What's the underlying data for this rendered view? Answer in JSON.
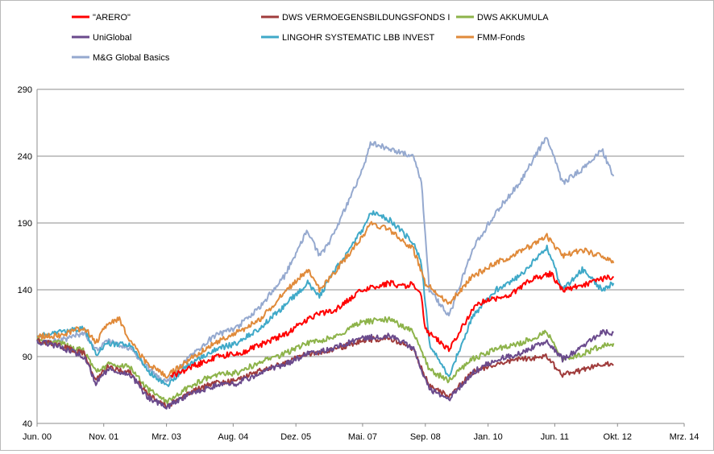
{
  "chart_data": {
    "type": "line",
    "title": "",
    "xlabel": "",
    "ylabel": "",
    "ylim": [
      40,
      290
    ],
    "yticks": [
      40,
      90,
      140,
      190,
      240,
      290
    ],
    "grid": "horizontal",
    "legend_position": "top",
    "xlim": [
      "2000-06",
      "2014-03"
    ],
    "x_ticks": [
      {
        "label": "Jun. 00",
        "date": "2000-06"
      },
      {
        "label": "Nov. 01",
        "date": "2001-11"
      },
      {
        "label": "Mrz. 03",
        "date": "2003-03"
      },
      {
        "label": "Aug. 04",
        "date": "2004-08"
      },
      {
        "label": "Dez. 05",
        "date": "2005-12"
      },
      {
        "label": "Mai. 07",
        "date": "2007-05"
      },
      {
        "label": "Sep. 08",
        "date": "2008-09"
      },
      {
        "label": "Jan. 10",
        "date": "2010-01"
      },
      {
        "label": "Jun. 11",
        "date": "2011-06"
      },
      {
        "label": "Okt. 12",
        "date": "2012-10"
      },
      {
        "label": "Mrz. 14",
        "date": "2014-03"
      }
    ],
    "series": [
      {
        "name": "\"ARERO\"",
        "color": "#ff0000",
        "points": [
          [
            "2003-04",
            75
          ],
          [
            "2003-10",
            83
          ],
          [
            "2004-04",
            90
          ],
          [
            "2004-10",
            93
          ],
          [
            "2005-04",
            100
          ],
          [
            "2005-10",
            108
          ],
          [
            "2006-04",
            120
          ],
          [
            "2006-10",
            125
          ],
          [
            "2007-04",
            138
          ],
          [
            "2007-07",
            142
          ],
          [
            "2007-12",
            145
          ],
          [
            "2008-04",
            142
          ],
          [
            "2008-06",
            145
          ],
          [
            "2008-08",
            135
          ],
          [
            "2008-09",
            110
          ],
          [
            "2008-11",
            105
          ],
          [
            "2009-03",
            95
          ],
          [
            "2009-06",
            110
          ],
          [
            "2009-09",
            125
          ],
          [
            "2009-12",
            132
          ],
          [
            "2010-06",
            135
          ],
          [
            "2010-12",
            148
          ],
          [
            "2011-05",
            152
          ],
          [
            "2011-08",
            140
          ],
          [
            "2012-01",
            143
          ],
          [
            "2012-06",
            148
          ],
          [
            "2012-09",
            150
          ]
        ]
      },
      {
        "name": "DWS VERMOEGENSBILDUNGSFONDS  I",
        "color": "#a03c3c",
        "points": [
          [
            "2000-06",
            102
          ],
          [
            "2000-12",
            98
          ],
          [
            "2001-06",
            92
          ],
          [
            "2001-09",
            72
          ],
          [
            "2001-12",
            82
          ],
          [
            "2002-06",
            78
          ],
          [
            "2002-10",
            62
          ],
          [
            "2003-03",
            53
          ],
          [
            "2003-09",
            63
          ],
          [
            "2004-03",
            70
          ],
          [
            "2004-09",
            72
          ],
          [
            "2005-03",
            80
          ],
          [
            "2005-09",
            85
          ],
          [
            "2006-03",
            92
          ],
          [
            "2006-09",
            95
          ],
          [
            "2007-05",
            102
          ],
          [
            "2007-12",
            104
          ],
          [
            "2008-06",
            95
          ],
          [
            "2008-10",
            68
          ],
          [
            "2009-03",
            60
          ],
          [
            "2009-09",
            78
          ],
          [
            "2010-03",
            85
          ],
          [
            "2010-09",
            88
          ],
          [
            "2011-04",
            90
          ],
          [
            "2011-08",
            76
          ],
          [
            "2012-01",
            80
          ],
          [
            "2012-06",
            84
          ],
          [
            "2012-09",
            84
          ]
        ]
      },
      {
        "name": "DWS AKKUMULA",
        "color": "#8db34a",
        "points": [
          [
            "2000-06",
            102
          ],
          [
            "2000-12",
            100
          ],
          [
            "2001-06",
            94
          ],
          [
            "2001-09",
            78
          ],
          [
            "2001-12",
            84
          ],
          [
            "2002-06",
            82
          ],
          [
            "2002-10",
            66
          ],
          [
            "2003-03",
            56
          ],
          [
            "2003-09",
            68
          ],
          [
            "2004-03",
            76
          ],
          [
            "2004-09",
            78
          ],
          [
            "2005-03",
            86
          ],
          [
            "2005-09",
            92
          ],
          [
            "2006-03",
            100
          ],
          [
            "2006-09",
            104
          ],
          [
            "2007-05",
            116
          ],
          [
            "2007-12",
            118
          ],
          [
            "2008-06",
            108
          ],
          [
            "2008-10",
            80
          ],
          [
            "2009-03",
            72
          ],
          [
            "2009-09",
            88
          ],
          [
            "2010-03",
            96
          ],
          [
            "2010-09",
            100
          ],
          [
            "2011-04",
            108
          ],
          [
            "2011-08",
            88
          ],
          [
            "2012-01",
            92
          ],
          [
            "2012-06",
            98
          ],
          [
            "2012-09",
            100
          ]
        ]
      },
      {
        "name": "UniGlobal",
        "color": "#6a4a8c",
        "points": [
          [
            "2000-06",
            102
          ],
          [
            "2000-12",
            97
          ],
          [
            "2001-06",
            90
          ],
          [
            "2001-09",
            70
          ],
          [
            "2001-12",
            80
          ],
          [
            "2002-06",
            76
          ],
          [
            "2002-10",
            60
          ],
          [
            "2003-03",
            52
          ],
          [
            "2003-09",
            62
          ],
          [
            "2004-03",
            68
          ],
          [
            "2004-09",
            70
          ],
          [
            "2005-03",
            78
          ],
          [
            "2005-09",
            84
          ],
          [
            "2006-03",
            92
          ],
          [
            "2006-09",
            96
          ],
          [
            "2007-05",
            104
          ],
          [
            "2007-12",
            106
          ],
          [
            "2008-06",
            96
          ],
          [
            "2008-10",
            66
          ],
          [
            "2009-03",
            58
          ],
          [
            "2009-09",
            78
          ],
          [
            "2010-03",
            88
          ],
          [
            "2010-09",
            92
          ],
          [
            "2011-04",
            102
          ],
          [
            "2011-08",
            88
          ],
          [
            "2012-01",
            98
          ],
          [
            "2012-06",
            108
          ],
          [
            "2012-09",
            108
          ]
        ]
      },
      {
        "name": "LINGOHR SYSTEMATIC  LBB INVEST",
        "color": "#3fa9c8",
        "points": [
          [
            "2000-06",
            105
          ],
          [
            "2000-12",
            108
          ],
          [
            "2001-06",
            112
          ],
          [
            "2001-09",
            92
          ],
          [
            "2001-12",
            100
          ],
          [
            "2002-06",
            98
          ],
          [
            "2002-10",
            80
          ],
          [
            "2003-03",
            68
          ],
          [
            "2003-09",
            85
          ],
          [
            "2004-03",
            95
          ],
          [
            "2004-09",
            100
          ],
          [
            "2005-03",
            112
          ],
          [
            "2005-09",
            128
          ],
          [
            "2006-03",
            145
          ],
          [
            "2006-06",
            135
          ],
          [
            "2006-09",
            150
          ],
          [
            "2007-05",
            185
          ],
          [
            "2007-07",
            198
          ],
          [
            "2007-12",
            192
          ],
          [
            "2008-06",
            175
          ],
          [
            "2008-08",
            160
          ],
          [
            "2008-10",
            100
          ],
          [
            "2009-03",
            75
          ],
          [
            "2009-09",
            120
          ],
          [
            "2010-03",
            140
          ],
          [
            "2010-09",
            150
          ],
          [
            "2011-04",
            172
          ],
          [
            "2011-08",
            140
          ],
          [
            "2012-01",
            155
          ],
          [
            "2012-06",
            140
          ],
          [
            "2012-09",
            145
          ]
        ]
      },
      {
        "name": "FMM-Fonds",
        "color": "#e08a3a",
        "points": [
          [
            "2000-06",
            105
          ],
          [
            "2000-12",
            106
          ],
          [
            "2001-06",
            112
          ],
          [
            "2001-09",
            100
          ],
          [
            "2001-12",
            115
          ],
          [
            "2002-03",
            118
          ],
          [
            "2002-06",
            100
          ],
          [
            "2002-10",
            85
          ],
          [
            "2003-03",
            75
          ],
          [
            "2003-09",
            88
          ],
          [
            "2004-03",
            100
          ],
          [
            "2004-09",
            108
          ],
          [
            "2005-03",
            118
          ],
          [
            "2005-09",
            138
          ],
          [
            "2006-03",
            155
          ],
          [
            "2006-06",
            140
          ],
          [
            "2006-09",
            150
          ],
          [
            "2007-05",
            180
          ],
          [
            "2007-07",
            190
          ],
          [
            "2007-12",
            185
          ],
          [
            "2008-06",
            170
          ],
          [
            "2008-09",
            145
          ],
          [
            "2008-11",
            140
          ],
          [
            "2009-03",
            130
          ],
          [
            "2009-09",
            150
          ],
          [
            "2010-03",
            160
          ],
          [
            "2010-09",
            168
          ],
          [
            "2011-04",
            180
          ],
          [
            "2011-08",
            165
          ],
          [
            "2012-01",
            170
          ],
          [
            "2012-06",
            165
          ],
          [
            "2012-09",
            160
          ]
        ]
      },
      {
        "name": "M&G Global Basics",
        "color": "#95a9cf",
        "points": [
          [
            "2000-06",
            100
          ],
          [
            "2000-12",
            102
          ],
          [
            "2001-06",
            108
          ],
          [
            "2001-09",
            95
          ],
          [
            "2001-12",
            102
          ],
          [
            "2002-06",
            96
          ],
          [
            "2002-10",
            82
          ],
          [
            "2003-03",
            70
          ],
          [
            "2003-09",
            90
          ],
          [
            "2004-03",
            105
          ],
          [
            "2004-09",
            112
          ],
          [
            "2005-03",
            128
          ],
          [
            "2005-09",
            150
          ],
          [
            "2006-03",
            185
          ],
          [
            "2006-06",
            165
          ],
          [
            "2006-09",
            178
          ],
          [
            "2007-05",
            230
          ],
          [
            "2007-07",
            250
          ],
          [
            "2007-12",
            245
          ],
          [
            "2008-06",
            240
          ],
          [
            "2008-08",
            220
          ],
          [
            "2008-10",
            140
          ],
          [
            "2009-03",
            120
          ],
          [
            "2009-09",
            170
          ],
          [
            "2010-03",
            198
          ],
          [
            "2010-09",
            220
          ],
          [
            "2011-04",
            255
          ],
          [
            "2011-08",
            220
          ],
          [
            "2012-01",
            230
          ],
          [
            "2012-06",
            245
          ],
          [
            "2012-09",
            225
          ]
        ]
      }
    ]
  }
}
